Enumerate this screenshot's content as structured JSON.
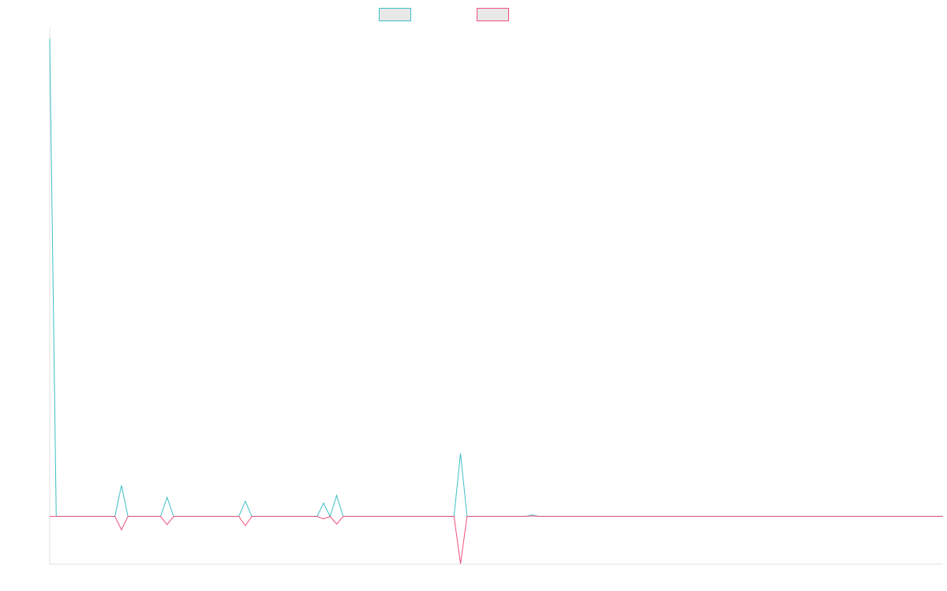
{
  "chart_data": {
    "type": "line",
    "title": "",
    "xlabel": "",
    "ylabel": "",
    "grid": false,
    "legend_position": "top-center",
    "x_count": 138,
    "ylim": [
      -10,
      102
    ],
    "series": [
      {
        "color": "#3fbfc4",
        "fill": "#e8e8e8",
        "points": [
          [
            0,
            100
          ],
          [
            1,
            0
          ],
          [
            10,
            0
          ],
          [
            11,
            6.5
          ],
          [
            12,
            0
          ],
          [
            17,
            0
          ],
          [
            18,
            4
          ],
          [
            19,
            0
          ],
          [
            29,
            0
          ],
          [
            30,
            3.2
          ],
          [
            31,
            0
          ],
          [
            41,
            0
          ],
          [
            42,
            2.8
          ],
          [
            43,
            0
          ],
          [
            44,
            4.4
          ],
          [
            45,
            0
          ],
          [
            62,
            0
          ],
          [
            63,
            13.2
          ],
          [
            64,
            0
          ],
          [
            73,
            0
          ],
          [
            74,
            0.3
          ],
          [
            75,
            0
          ],
          [
            137,
            0
          ]
        ]
      },
      {
        "color": "#f0507a",
        "fill": "#e8e8e8",
        "points": [
          [
            0,
            0
          ],
          [
            10,
            0
          ],
          [
            11,
            -2.8
          ],
          [
            12,
            0
          ],
          [
            17,
            0
          ],
          [
            18,
            -1.7
          ],
          [
            19,
            0
          ],
          [
            29,
            0
          ],
          [
            30,
            -1.9
          ],
          [
            31,
            0
          ],
          [
            41,
            0
          ],
          [
            42,
            -0.5
          ],
          [
            43,
            0
          ],
          [
            44,
            -1.6
          ],
          [
            45,
            0
          ],
          [
            62,
            0
          ],
          [
            63,
            -9.9
          ],
          [
            64,
            0
          ],
          [
            73,
            0
          ],
          [
            74,
            0.1
          ],
          [
            75,
            0
          ],
          [
            137,
            0
          ]
        ]
      }
    ]
  }
}
